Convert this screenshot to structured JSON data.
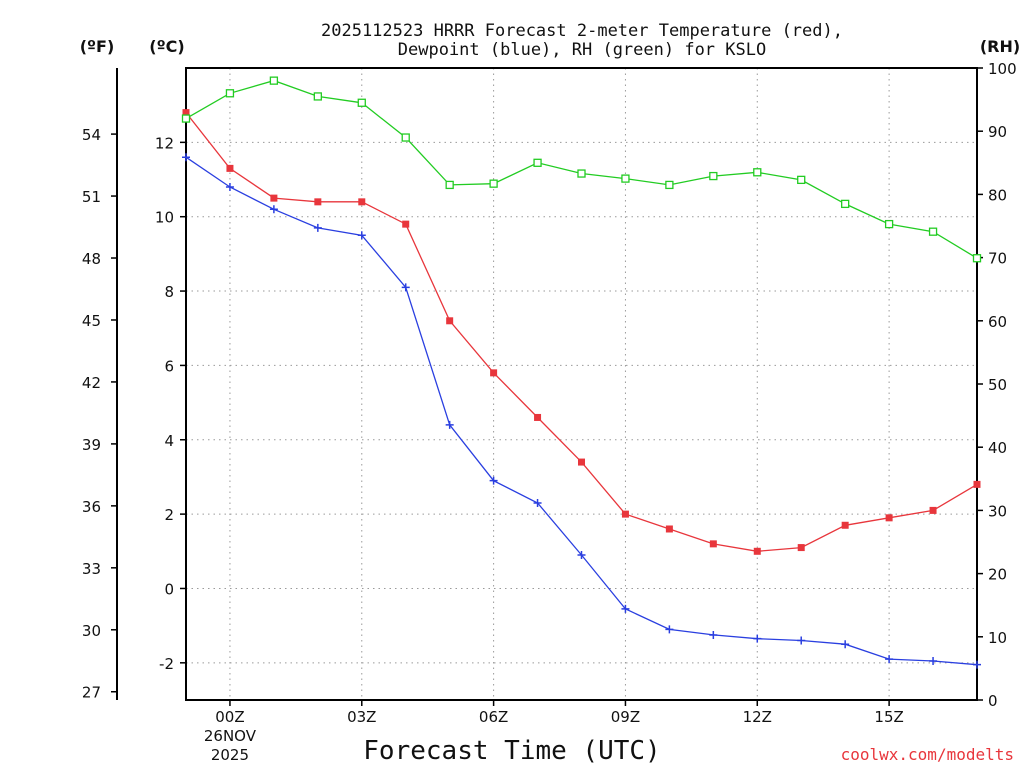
{
  "chart_data": {
    "type": "line",
    "title_lines": [
      "2025112523 HRRR Forecast 2-meter Temperature (red),",
      "Dewpoint (blue), RH (green) for KSLO"
    ],
    "xlabel": "Forecast Time (UTC)",
    "credit": "coolwx.com/modelts",
    "units": {
      "fahrenheit": "(ºF)",
      "celsius": "(ºC)",
      "rh": "(RH)"
    },
    "x_hours": [
      23,
      24,
      25,
      26,
      27,
      28,
      29,
      30,
      31,
      32,
      33,
      34,
      35,
      36,
      37,
      38,
      39,
      40,
      41
    ],
    "x_range": [
      23,
      41
    ],
    "x_ticks": [
      {
        "hour": 24,
        "label": "00Z",
        "sub": [
          "26NOV",
          "2025"
        ]
      },
      {
        "hour": 27,
        "label": "03Z"
      },
      {
        "hour": 30,
        "label": "06Z"
      },
      {
        "hour": 33,
        "label": "09Z"
      },
      {
        "hour": 36,
        "label": "12Z"
      },
      {
        "hour": 39,
        "label": "15Z"
      }
    ],
    "celsius_axis": {
      "range": [
        -3,
        14
      ],
      "ticks": [
        "-2",
        "0",
        "2",
        "4",
        "6",
        "8",
        "10",
        "12"
      ]
    },
    "fahrenheit_axis": {
      "ticks": [
        "27",
        "30",
        "33",
        "36",
        "39",
        "42",
        "45",
        "48",
        "51",
        "54"
      ]
    },
    "rh_axis": {
      "range": [
        0,
        100
      ],
      "ticks": [
        "0",
        "10",
        "20",
        "30",
        "40",
        "50",
        "60",
        "70",
        "80",
        "90",
        "100"
      ]
    },
    "grid": true,
    "series": [
      {
        "name": "Temperature",
        "axis": "celsius",
        "color": "#e8363c",
        "marker": "filled-square",
        "values": [
          12.8,
          11.3,
          10.5,
          10.4,
          10.4,
          9.8,
          7.2,
          5.8,
          4.6,
          3.4,
          2.0,
          1.6,
          1.2,
          1.0,
          1.1,
          1.7,
          1.9,
          2.1,
          2.8
        ]
      },
      {
        "name": "Dewpoint",
        "axis": "celsius",
        "color": "#2a3fe0",
        "marker": "plus",
        "values": [
          11.6,
          10.8,
          10.2,
          9.7,
          9.5,
          8.1,
          4.4,
          2.9,
          2.3,
          0.9,
          -0.55,
          -1.1,
          -1.25,
          -1.35,
          -1.4,
          -1.5,
          -1.9,
          -1.95,
          -2.05
        ]
      },
      {
        "name": "RH",
        "axis": "rh",
        "color": "#22cc22",
        "marker": "open-square",
        "values": [
          92,
          96,
          98,
          95.5,
          94.5,
          89,
          81.5,
          81.7,
          85,
          83.3,
          82.5,
          81.5,
          82.9,
          83.5,
          82.3,
          78.5,
          75.3,
          74.1,
          69.9
        ]
      }
    ]
  }
}
